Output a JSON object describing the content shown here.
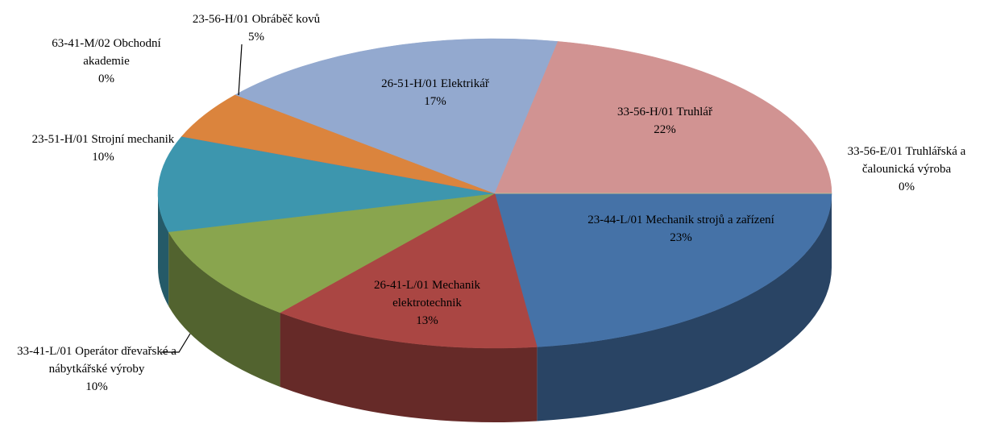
{
  "chart_data": {
    "type": "pie3d",
    "categories": [
      "23-44-L/01 Mechanik strojů a zařízení",
      "26-41-L/01 Mechanik elektrotechnik",
      "33-41-L/01 Operátor dřevařské a nábytkářské výroby",
      "23-51-H/01 Strojní mechanik",
      "63-41-M/02 Obchodní akademie",
      "23-56-H/01 Obráběč kovů",
      "26-51-H/01 Elektrikář",
      "33-56-H/01 Truhlář",
      "33-56-E/01 Truhlářská a čalounická výroba"
    ],
    "values": [
      23,
      13,
      10,
      10,
      0,
      5,
      17,
      22,
      0
    ],
    "value_labels": [
      "23%",
      "13%",
      "10%",
      "10%",
      "0%",
      "5%",
      "17%",
      "22%",
      "0%"
    ],
    "colors": [
      "#4572a7",
      "#aa4643",
      "#89a54e",
      "#3d96ae",
      "#80699b",
      "#db843d",
      "#93a9cf",
      "#d19392",
      "#b9cd96"
    ]
  }
}
